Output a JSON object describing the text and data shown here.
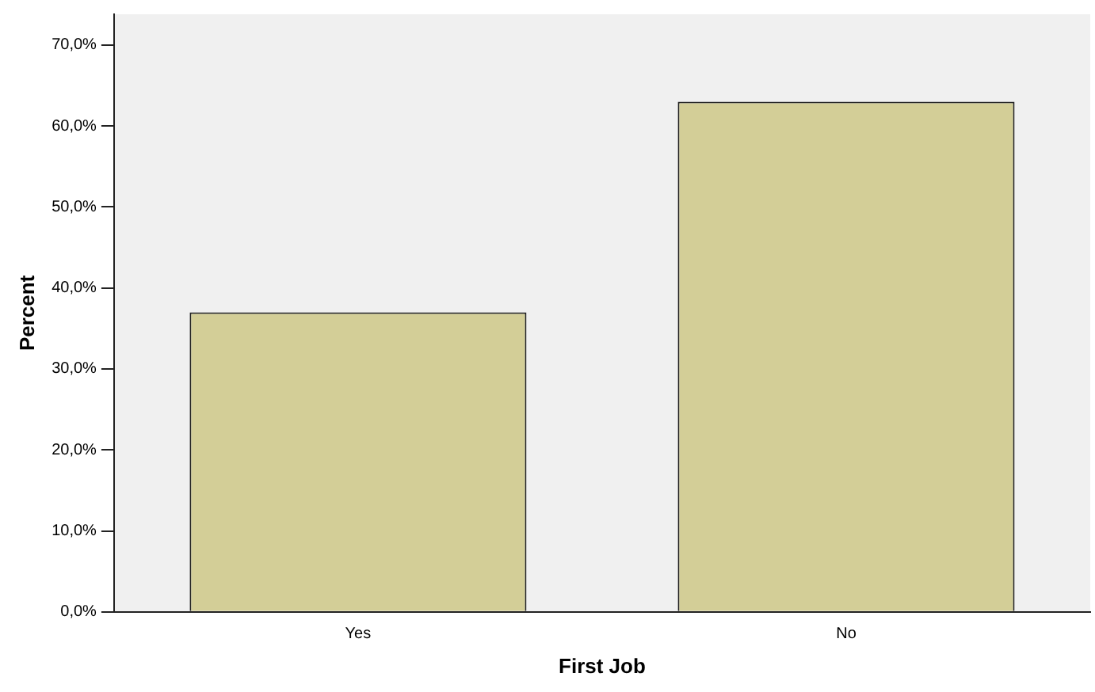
{
  "chart_data": {
    "type": "bar",
    "xlabel": "First Job",
    "ylabel": "Percent",
    "categories": [
      "Yes",
      "No"
    ],
    "values": [
      37.0,
      63.0
    ],
    "color": "#d3ce97",
    "ylim": [
      0,
      73.8
    ],
    "yticks": [
      {
        "value": 0,
        "label": "0,0%"
      },
      {
        "value": 10,
        "label": "10,0%"
      },
      {
        "value": 20,
        "label": "20,0%"
      },
      {
        "value": 30,
        "label": "30,0%"
      },
      {
        "value": 40,
        "label": "40,0%"
      },
      {
        "value": 50,
        "label": "50,0%"
      },
      {
        "value": 60,
        "label": "60,0%"
      },
      {
        "value": 70,
        "label": "70,0%"
      }
    ],
    "grid": false,
    "legend": false
  }
}
